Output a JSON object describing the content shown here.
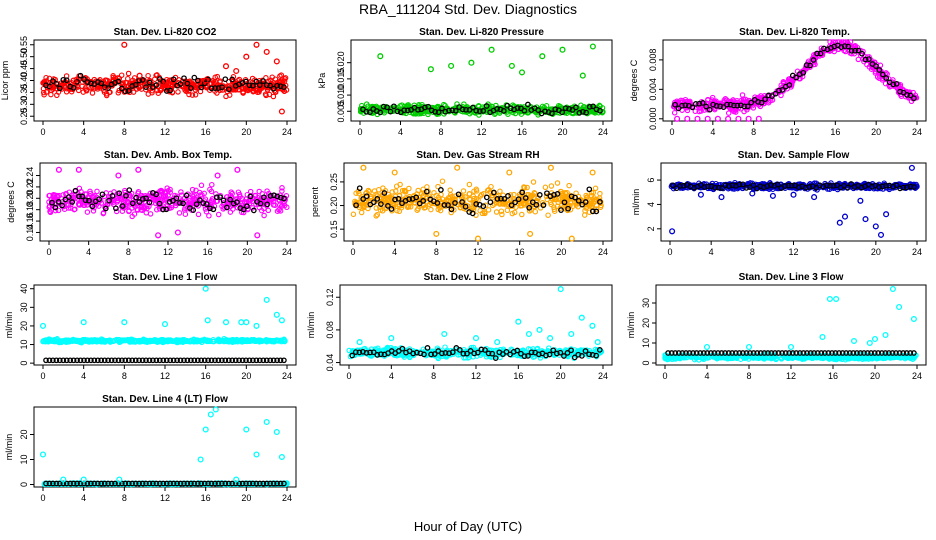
{
  "figure": {
    "title": "RBA_111204  Std. Dev. Diagnostics",
    "xlabel": "Hour of Day (UTC)"
  },
  "chart_data": [
    {
      "type": "scatter",
      "title": "Stan. Dev. Li-820 CO2",
      "ylabel": "Licor ppm",
      "color": "#ff0000",
      "xlim": [
        0,
        24
      ],
      "ylim": [
        0.23,
        0.57
      ],
      "xticks": [
        0,
        4,
        8,
        12,
        16,
        20,
        24
      ],
      "yticks": [
        "0.25",
        "0.30",
        "0.35",
        "0.40",
        "0.45",
        "0.50",
        "0.55"
      ],
      "ytick_values": [
        0.25,
        0.3,
        0.35,
        0.4,
        0.45,
        0.5,
        0.55
      ],
      "base": 0.38,
      "spread": 0.04,
      "trend": 0,
      "x": [
        1,
        3,
        6,
        8,
        9.5,
        12,
        14,
        16,
        18,
        19,
        20,
        21,
        22,
        23,
        23.5
      ],
      "y": [
        0.37,
        0.4,
        0.36,
        0.55,
        0.42,
        0.38,
        0.36,
        0.4,
        0.46,
        0.44,
        0.5,
        0.55,
        0.52,
        0.48,
        0.27
      ],
      "outliers_color": "#ff0000"
    },
    {
      "type": "scatter",
      "title": "Stan. Dev. Li-820 Pressure",
      "ylabel": "kPa",
      "color": "#00cc00",
      "xlim": [
        0,
        24
      ],
      "ylim": [
        0.002,
        0.027
      ],
      "xticks": [
        0,
        4,
        8,
        12,
        16,
        20,
        24
      ],
      "yticks": [
        "0.005",
        "0.010",
        "0.015",
        "0.020"
      ],
      "ytick_values": [
        0.005,
        0.01,
        0.015,
        0.02
      ],
      "base": 0.0055,
      "spread": 0.0015,
      "trend": 0,
      "x": [
        2,
        7,
        9,
        11,
        13,
        15,
        16,
        18,
        20,
        22,
        23
      ],
      "y": [
        0.022,
        0.018,
        0.019,
        0.02,
        0.024,
        0.019,
        0.017,
        0.022,
        0.024,
        0.016,
        0.025
      ],
      "outliers_color": "#00cc00"
    },
    {
      "type": "scatter",
      "title": "Stan. Dev. Li-820 Temp.",
      "ylabel": "degrees C",
      "color": "#ff00ff",
      "xlim": [
        0,
        24
      ],
      "ylim": [
        -0.0003,
        0.0107
      ],
      "xticks": [
        0,
        4,
        8,
        12,
        16,
        20,
        24
      ],
      "yticks": [
        "0.000",
        "0.004",
        "0.008"
      ],
      "ytick_values": [
        0.0,
        0.004,
        0.008
      ],
      "base": 0.003,
      "spread": 0.0009,
      "trend": "hump",
      "x": [
        0.5,
        1.5,
        2.5,
        3.5,
        4.5,
        5.5,
        6.5,
        7.5,
        8.5
      ],
      "y": [
        0,
        0,
        0,
        0,
        0,
        0,
        0,
        0,
        0
      ],
      "outliers_color": "#ff00ff"
    },
    {
      "type": "scatter",
      "title": "Stan. Dev. Amb. Box Temp.",
      "ylabel": "degrees C",
      "color": "#ff00ff",
      "xlim": [
        0,
        24
      ],
      "ylim": [
        0.125,
        0.262
      ],
      "xticks": [
        0,
        4,
        8,
        12,
        16,
        20,
        24
      ],
      "yticks": [
        "0.14",
        "0.16",
        "0.18",
        "0.20",
        "0.22",
        "0.24"
      ],
      "ytick_values": [
        0.14,
        0.16,
        0.18,
        0.2,
        0.22,
        0.24
      ],
      "base": 0.195,
      "spread": 0.022,
      "trend": 0,
      "x": [
        1,
        3,
        7,
        9,
        11,
        13,
        17,
        19,
        21
      ],
      "y": [
        0.25,
        0.25,
        0.24,
        0.25,
        0.135,
        0.14,
        0.24,
        0.25,
        0.135
      ],
      "outliers_color": "#ff00ff"
    },
    {
      "type": "scatter",
      "title": "Stan. Dev. Gas Stream RH",
      "ylabel": "percent",
      "color": "#ffa500",
      "xlim": [
        0,
        24
      ],
      "ylim": [
        0.125,
        0.29
      ],
      "xticks": [
        0,
        4,
        8,
        12,
        16,
        20,
        24
      ],
      "yticks": [
        "0.15",
        "0.20",
        "0.25"
      ],
      "ytick_values": [
        0.15,
        0.2,
        0.25
      ],
      "base": 0.21,
      "spread": 0.03,
      "trend": 0,
      "x": [
        1,
        4,
        8,
        10,
        12,
        15,
        17,
        19,
        21,
        23
      ],
      "y": [
        0.28,
        0.27,
        0.14,
        0.28,
        0.13,
        0.27,
        0.14,
        0.28,
        0.13,
        0.27
      ],
      "outliers_color": "#ffa500"
    },
    {
      "type": "scatter",
      "title": "Stan. Dev. Sample Flow",
      "ylabel": "ml/min",
      "color": "#0000cc",
      "xlim": [
        0,
        24
      ],
      "ylim": [
        1.0,
        7.4
      ],
      "xticks": [
        0,
        4,
        8,
        12,
        16,
        20,
        24
      ],
      "yticks": [
        "2",
        "4",
        "6"
      ],
      "ytick_values": [
        2,
        4,
        6
      ],
      "base": 5.5,
      "spread": 0.25,
      "trend": 0,
      "x": [
        0.2,
        3,
        5,
        8,
        10,
        12,
        14,
        16.5,
        17,
        18.5,
        19,
        20,
        20.5,
        21,
        23.5
      ],
      "y": [
        1.8,
        4.8,
        4.6,
        4.9,
        4.7,
        4.8,
        4.6,
        2.5,
        3.0,
        4.3,
        2.8,
        2.2,
        1.5,
        3.2,
        7.0
      ],
      "outliers_color": "#0000cc"
    },
    {
      "type": "scatter",
      "title": "Stan. Dev. Line 1 Flow",
      "ylabel": "ml/min",
      "color": "#00ffff",
      "xlim": [
        0,
        24
      ],
      "ylim": [
        -1,
        42
      ],
      "xticks": [
        0,
        4,
        8,
        12,
        16,
        20,
        24
      ],
      "yticks": [
        "0",
        "10",
        "20",
        "30",
        "40"
      ],
      "ytick_values": [
        0,
        10,
        20,
        30,
        40
      ],
      "base": 12,
      "spread": 0.8,
      "trend": 0,
      "x": [
        0,
        4,
        8,
        12,
        16,
        16.2,
        18,
        19.5,
        20,
        21,
        22,
        23,
        23.5
      ],
      "y": [
        20,
        22,
        22,
        21,
        40,
        23,
        22,
        22,
        22,
        20,
        34,
        26,
        23
      ],
      "outliers_color": "#00ffff",
      "black_level": 1.5
    },
    {
      "type": "scatter",
      "title": "Stan. Dev. Line 2 Flow",
      "ylabel": "ml/min",
      "color": "#00ffff",
      "xlim": [
        0,
        24
      ],
      "ylim": [
        0.037,
        0.135
      ],
      "xticks": [
        0,
        4,
        8,
        12,
        16,
        20,
        24
      ],
      "yticks": [
        "0.04",
        "0.08",
        "0.12"
      ],
      "ytick_values": [
        0.04,
        0.08,
        0.12
      ],
      "base": 0.052,
      "spread": 0.006,
      "trend": 0,
      "x": [
        1,
        4,
        9,
        12,
        14,
        16,
        17,
        18,
        19,
        20,
        21,
        22,
        23,
        23.5
      ],
      "y": [
        0.065,
        0.07,
        0.075,
        0.07,
        0.065,
        0.09,
        0.075,
        0.08,
        0.07,
        0.13,
        0.075,
        0.095,
        0.085,
        0.065
      ],
      "outliers_color": "#00ffff"
    },
    {
      "type": "scatter",
      "title": "Stan. Dev. Line 3 Flow",
      "ylabel": "ml/min",
      "color": "#00ffff",
      "xlim": [
        0,
        24
      ],
      "ylim": [
        -1,
        39
      ],
      "xticks": [
        0,
        4,
        8,
        12,
        16,
        20,
        24
      ],
      "yticks": [
        "0",
        "10",
        "20",
        "30"
      ],
      "ytick_values": [
        0,
        10,
        20,
        30
      ],
      "base": 3,
      "spread": 1.2,
      "trend": 0,
      "x": [
        4,
        8,
        12,
        15,
        15.7,
        16.3,
        18,
        19.5,
        20,
        21,
        21.7,
        22.3,
        23.7
      ],
      "y": [
        8,
        8,
        8,
        13,
        32,
        32,
        11,
        10,
        12,
        14,
        37,
        28,
        22
      ],
      "outliers_color": "#00ffff",
      "black_level": 5
    },
    {
      "type": "scatter",
      "title": "Stan. Dev. Line 4 (LT) Flow",
      "ylabel": "ml/min",
      "color": "#00ffff",
      "xlim": [
        0,
        24
      ],
      "ylim": [
        -1,
        31
      ],
      "xticks": [
        0,
        4,
        8,
        12,
        16,
        20,
        24
      ],
      "yticks": [
        "0",
        "10",
        "20"
      ],
      "ytick_values": [
        0,
        10,
        20
      ],
      "base": 0.3,
      "spread": 0.3,
      "trend": 0,
      "x": [
        0,
        2,
        4,
        7.5,
        15.5,
        16,
        16.5,
        17,
        19,
        20,
        21,
        22,
        23,
        23.5
      ],
      "y": [
        12,
        2,
        2,
        2,
        10,
        22,
        28,
        30,
        2,
        22,
        12,
        25,
        21,
        11
      ],
      "outliers_color": "#00ffff",
      "black_level": 0.4
    }
  ]
}
